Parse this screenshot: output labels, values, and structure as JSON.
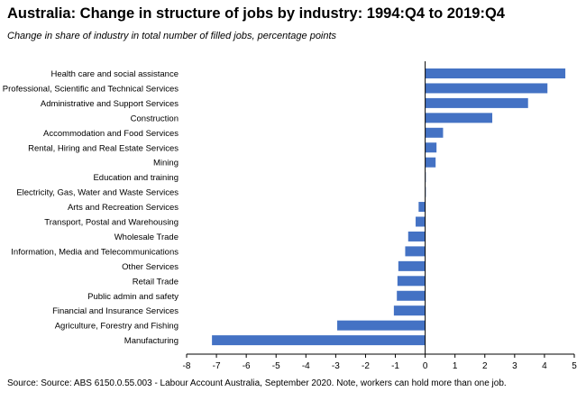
{
  "chart_data": {
    "type": "bar",
    "orientation": "horizontal",
    "title": "Australia: Change in structure of jobs by industry: 1994:Q4 to 2019:Q4",
    "subtitle": "Change in share of industry in total number of filled jobs, percentage points",
    "source": "Source: Source: ABS 6150.0.55.003 - Labour Account Australia, September 2020.  Note, workers can hold more than one job.",
    "xlim": [
      -8,
      5
    ],
    "xticks": [
      -8,
      -7,
      -6,
      -5,
      -4,
      -3,
      -2,
      -1,
      0,
      1,
      2,
      3,
      4,
      5
    ],
    "grid": false,
    "bar_color": "#4472C4",
    "categories": [
      "Health care and social assistance",
      "Professional, Scientific and Technical Services",
      "Administrative and Support Services",
      "Construction",
      "Accommodation and Food Services",
      "Rental, Hiring and Real Estate Services",
      "Mining",
      "Education and training",
      "Electricity, Gas, Water and Waste Services",
      "Arts and Recreation Services",
      "Transport, Postal and Warehousing",
      "Wholesale Trade",
      "Information, Media and Telecommunications",
      "Other Services",
      "Retail Trade",
      "Public admin and safety",
      "Financial and Insurance Services",
      "Agriculture, Forestry and Fishing",
      "Manufacturing"
    ],
    "values": [
      4.7,
      4.1,
      3.45,
      2.25,
      0.6,
      0.38,
      0.35,
      0.02,
      0.02,
      -0.22,
      -0.32,
      -0.57,
      -0.67,
      -0.9,
      -0.93,
      -0.95,
      -1.05,
      -2.95,
      -7.15
    ]
  }
}
